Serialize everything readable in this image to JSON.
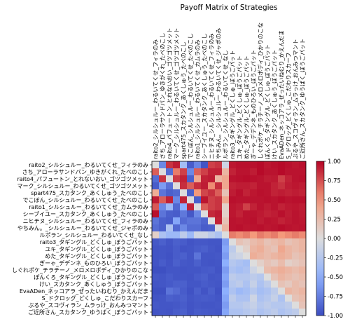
{
  "chart_data": {
    "type": "heatmap",
    "title": "Payoff Matrix of Strategies",
    "xlabel": "",
    "ylabel": "",
    "colormap": "coolwarm",
    "color_range": [
      -1.0,
      1.0
    ],
    "colorbar_ticks": [
      "1.00",
      "0.75",
      "0.50",
      "0.25",
      "0.00",
      "-0.25",
      "-0.50",
      "-0.75",
      "-1.00"
    ],
    "strategies": [
      "raito2_シルシュルー_わるいてくせ_フィラのみ",
      "さち_アローラサンドパン_ゆきがくれ_たべのこし",
      "raito4_パフュートン_とれないおい_ゴツゴツメット",
      "マーク_シルシュルー_わるいてくせ_ゴツゴツメット",
      "spart475_スカタンク_あくしゅう_たべのこし",
      "でこぼん_シルシュルー_わるいてくせ_たべのこし",
      "raito1_シルシュルー_わるいてくせ_カムラのみ",
      "シーブイユー_スカタンク_あくしゅう_たべのこし",
      "ニヒチヌ_シルシュルー_わるいてくせ_フィラのみ",
      "やちみん。_シルシュルー_わるいてくせ_ジャポのみ",
      "ルポラン_シルシュルー_わるいてくせ_なし",
      "raito3_タギングル_どくしゅ_ぼうごパット",
      "ユキ_タギングル_どくしゅ_ぼうごパット",
      "めた_タギングル_どくしゅ_ぼうごパット",
      "ぎーゃ_デデンネ_ものひろい_ぼうごパット",
      "しぐれポケ_チラチーノ_メロメロボディ_ひかりのこな",
      "ぽんくろ_タギングル_どくしゅ_ぼうごパット",
      "けい_スカタンク_あくしゅう_ぼうごパット",
      "EvaADen_ネッコアラ_ぜったいねむり_かえんだま",
      "S_ドクロッグ_どくしゅ_こだわりスカーフ",
      "ぶるや_スコヴィラン_ムラっけ_おんみつマント",
      "ご近所さん_スカタンク_ゆうばく_ぼうごパット"
    ],
    "matrix": [
      [
        0,
        -0.7,
        0.84,
        0.92,
        -0.36,
        -0.92,
        -0.72,
        -0.96,
        0.8,
        0.84,
        -0.1,
        0.94,
        0.96,
        0.96,
        0.96,
        0.98,
        0.94,
        0.96,
        0.98,
        0.96,
        0.94,
        0.96
      ],
      [
        0.7,
        0,
        -0.84,
        0.6,
        0.8,
        -0.7,
        0.7,
        0.8,
        0.9,
        0.9,
        0.3,
        0.9,
        0.95,
        0.95,
        0.92,
        0.98,
        0.95,
        0.95,
        0.98,
        0.95,
        0.95,
        0.95
      ],
      [
        -0.84,
        0.84,
        0,
        0.82,
        0.9,
        -0.9,
        0.4,
        0.9,
        0.92,
        0.3,
        0.4,
        0.95,
        0.96,
        0.97,
        0.96,
        0.95,
        0.92,
        0.93,
        0.8,
        0.9,
        0.95,
        0.96
      ],
      [
        -0.92,
        -0.6,
        -0.82,
        0,
        0.86,
        0.7,
        0.86,
        0.92,
        0.55,
        0.86,
        0.4,
        0.9,
        0.92,
        0.92,
        0.9,
        0.95,
        0.95,
        0.9,
        0.85,
        0.92,
        0.94,
        0.92
      ],
      [
        0.36,
        -0.8,
        -0.9,
        -0.86,
        0,
        -0.9,
        0.5,
        0.78,
        0.85,
        0.7,
        0.2,
        0.92,
        0.96,
        0.9,
        0.94,
        0.96,
        0.95,
        0.9,
        0.92,
        0.9,
        0.92,
        0.9
      ],
      [
        0.92,
        0.7,
        0.9,
        -0.7,
        0.9,
        0,
        -0.9,
        0.94,
        0.8,
        0.84,
        0.4,
        0.96,
        0.95,
        0.95,
        0.95,
        0.95,
        0.96,
        0.95,
        0.97,
        0.95,
        0.96,
        0.96
      ],
      [
        0.72,
        -0.7,
        -0.4,
        -0.86,
        -0.5,
        0.9,
        0,
        0.7,
        0.8,
        0.84,
        0.1,
        0.94,
        0.92,
        0.8,
        0.9,
        0.95,
        0.92,
        0.95,
        0.9,
        0.93,
        0.94,
        0.92
      ],
      [
        0.96,
        -0.8,
        -0.9,
        -0.92,
        -0.78,
        -0.94,
        -0.7,
        0,
        0.88,
        0.92,
        0.1,
        0.94,
        0.9,
        0.95,
        0.95,
        0.93,
        0.9,
        0.92,
        0.96,
        0.92,
        0.95,
        0.93
      ],
      [
        -0.8,
        -0.9,
        -0.92,
        -0.55,
        -0.85,
        -0.8,
        -0.8,
        -0.88,
        0,
        0.9,
        0.2,
        0.95,
        0.94,
        0.95,
        0.96,
        0.92,
        0.95,
        0.94,
        0.9,
        0.93,
        0.95,
        0.94
      ],
      [
        -0.84,
        -0.9,
        -0.3,
        -0.86,
        -0.7,
        -0.84,
        -0.84,
        -0.92,
        -0.9,
        0,
        0.3,
        0.95,
        0.96,
        0.94,
        0.95,
        0.96,
        0.94,
        0.95,
        0.97,
        0.95,
        0.94,
        0.95
      ],
      [
        0.1,
        -0.3,
        -0.4,
        -0.4,
        -0.2,
        -0.4,
        -0.1,
        -0.1,
        -0.2,
        -0.3,
        0,
        0.6,
        0.55,
        0.6,
        0.5,
        0.6,
        0.55,
        0.6,
        0.5,
        0.55,
        0.6,
        0.55
      ],
      [
        -0.94,
        -0.9,
        -0.95,
        -0.9,
        -0.92,
        -0.96,
        -0.94,
        -0.94,
        -0.95,
        -0.95,
        -0.6,
        0,
        0.2,
        0.15,
        0.25,
        0.3,
        0.2,
        0.25,
        0.3,
        0.2,
        0.25,
        0.3
      ],
      [
        -0.96,
        -0.95,
        -0.96,
        -0.92,
        -0.96,
        -0.95,
        -0.92,
        -0.9,
        -0.94,
        -0.96,
        -0.55,
        -0.2,
        0,
        0.1,
        0.3,
        0.35,
        0.25,
        0.2,
        0.4,
        0.3,
        0.25,
        0.3
      ],
      [
        -0.96,
        -0.95,
        -0.97,
        -0.92,
        -0.9,
        -0.95,
        -0.8,
        -0.95,
        -0.95,
        -0.94,
        -0.6,
        -0.15,
        -0.1,
        0,
        0.35,
        0.3,
        0.25,
        0.3,
        0.35,
        0.3,
        0.2,
        0.25
      ],
      [
        -0.96,
        -0.92,
        -0.96,
        -0.9,
        -0.94,
        -0.95,
        -0.9,
        -0.95,
        -0.96,
        -0.95,
        -0.5,
        -0.25,
        -0.3,
        -0.35,
        0,
        0.1,
        0.2,
        0.15,
        0.25,
        0.1,
        0.15,
        0.2
      ],
      [
        -0.98,
        -0.98,
        -0.95,
        -0.95,
        -0.96,
        -0.95,
        -0.95,
        -0.93,
        -0.92,
        -0.96,
        -0.6,
        -0.3,
        -0.35,
        -0.3,
        -0.1,
        0,
        0.25,
        0.3,
        0.35,
        0.3,
        0.25,
        0.3
      ],
      [
        -0.94,
        -0.95,
        -0.92,
        -0.95,
        -0.95,
        -0.96,
        -0.92,
        -0.9,
        -0.95,
        -0.94,
        -0.55,
        -0.2,
        -0.25,
        -0.25,
        -0.2,
        -0.25,
        0,
        0.2,
        0.3,
        0.25,
        0.2,
        0.25
      ],
      [
        -0.96,
        -0.95,
        -0.93,
        -0.9,
        -0.9,
        -0.95,
        -0.95,
        -0.92,
        -0.94,
        -0.95,
        -0.6,
        -0.25,
        -0.2,
        -0.3,
        -0.15,
        -0.3,
        -0.2,
        0,
        0.2,
        0.15,
        0.25,
        0.2
      ],
      [
        -0.98,
        -0.98,
        -0.8,
        -0.85,
        -0.92,
        -0.97,
        -0.9,
        -0.96,
        -0.9,
        -0.97,
        -0.5,
        -0.3,
        -0.4,
        -0.35,
        -0.25,
        -0.35,
        -0.3,
        -0.2,
        0,
        0.3,
        0.25,
        0.3
      ],
      [
        -0.96,
        -0.95,
        -0.9,
        -0.92,
        -0.9,
        -0.95,
        -0.93,
        -0.92,
        -0.93,
        -0.95,
        -0.55,
        -0.2,
        -0.3,
        -0.3,
        -0.1,
        -0.3,
        -0.25,
        -0.15,
        -0.3,
        0,
        0.2,
        0.25
      ],
      [
        -0.94,
        -0.95,
        -0.95,
        -0.94,
        -0.92,
        -0.96,
        -0.94,
        -0.95,
        -0.95,
        -0.94,
        -0.6,
        -0.25,
        -0.25,
        -0.2,
        -0.15,
        -0.25,
        -0.2,
        -0.25,
        -0.25,
        -0.2,
        0,
        0.2
      ],
      [
        -0.96,
        -0.95,
        -0.96,
        -0.92,
        -0.9,
        -0.96,
        -0.92,
        -0.93,
        -0.94,
        -0.95,
        -0.55,
        -0.3,
        -0.3,
        -0.25,
        -0.2,
        -0.3,
        -0.25,
        -0.2,
        -0.3,
        -0.25,
        -0.2,
        0
      ]
    ]
  }
}
